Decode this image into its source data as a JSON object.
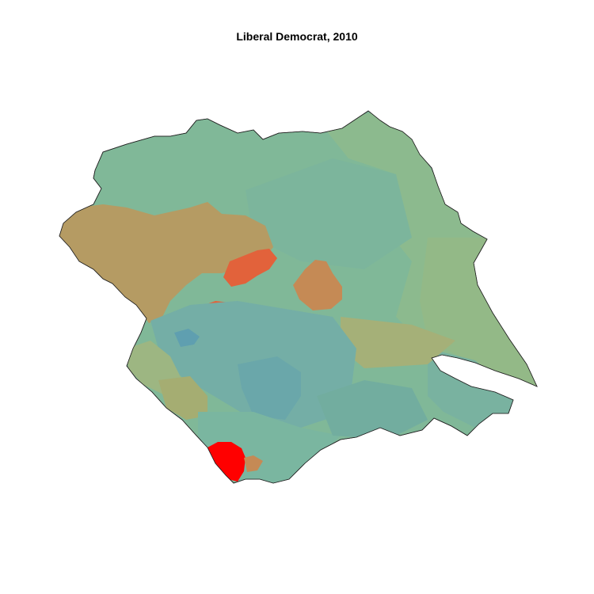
{
  "title": "Liberal Democrat, 2010",
  "map": {
    "region_shades": [
      "#80b898",
      "#8cba8e",
      "#7cb59c",
      "#b59b63",
      "#c58a55",
      "#e2623b",
      "#6aa7aa",
      "#74aea6",
      "#a5b078",
      "#93b987",
      "#ff0000"
    ]
  }
}
